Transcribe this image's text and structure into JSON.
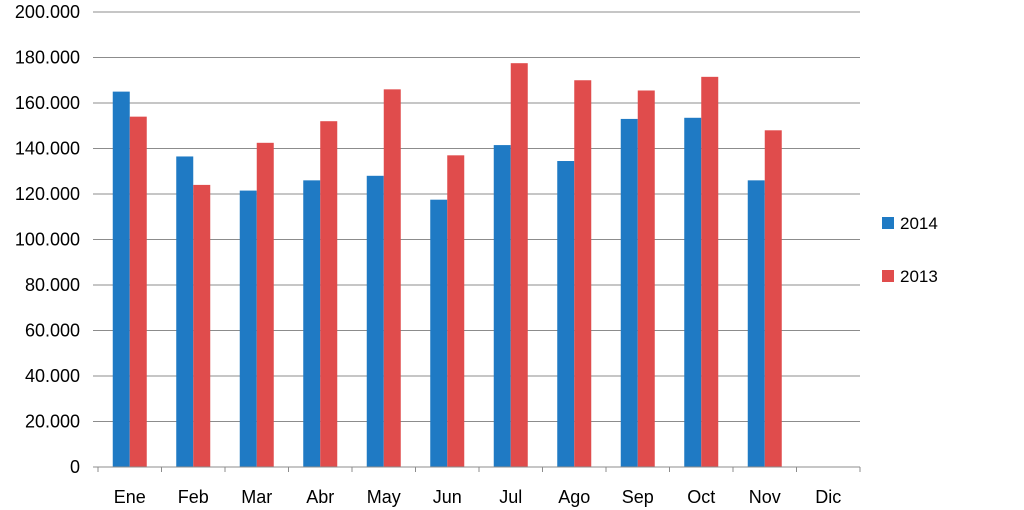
{
  "chart_data": {
    "type": "bar",
    "categories": [
      "Ene",
      "Feb",
      "Mar",
      "Abr",
      "May",
      "Jun",
      "Jul",
      "Ago",
      "Sep",
      "Oct",
      "Nov",
      "Dic"
    ],
    "series": [
      {
        "name": "2014",
        "color": "#1f7ac4",
        "values": [
          165000,
          136500,
          121500,
          126000,
          128000,
          117500,
          141500,
          134500,
          153000,
          153500,
          126000,
          null
        ]
      },
      {
        "name": "2013",
        "color": "#e04c4c",
        "values": [
          154000,
          124000,
          142500,
          152000,
          166000,
          137000,
          177500,
          170000,
          165500,
          171500,
          148000,
          null
        ]
      }
    ],
    "y_ticks": [
      "0",
      "20.000",
      "40.000",
      "60.000",
      "80.000",
      "100.000",
      "120.000",
      "140.000",
      "160.000",
      "180.000",
      "200.000"
    ],
    "ylim": [
      0,
      200000
    ],
    "grid": true,
    "legend_position": "right",
    "title": "",
    "xlabel": "",
    "ylabel": ""
  }
}
